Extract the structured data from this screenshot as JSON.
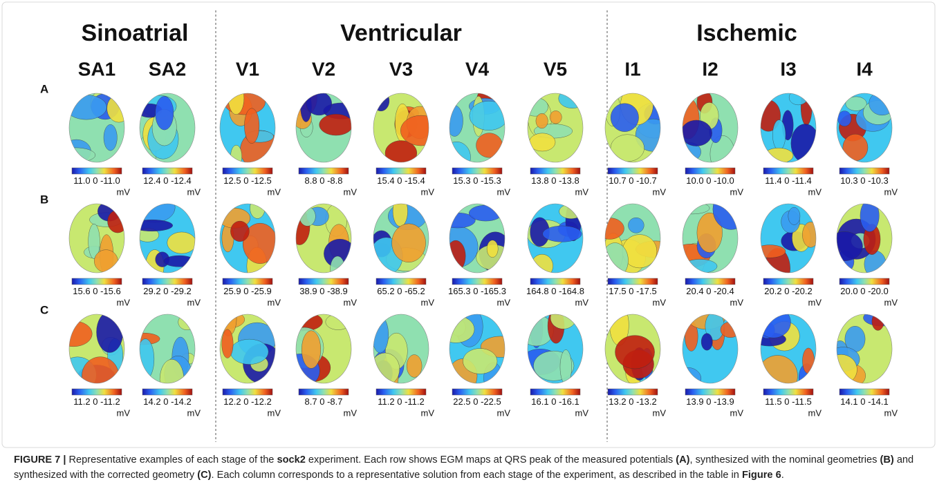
{
  "groups": [
    {
      "title": "Sinoatrial",
      "columns": [
        "SA1",
        "SA2"
      ]
    },
    {
      "title": "Ventricular",
      "columns": [
        "V1",
        "V2",
        "V3",
        "V4",
        "V5"
      ]
    },
    {
      "title": "Ischemic",
      "columns": [
        "I1",
        "I2",
        "I3",
        "I4"
      ]
    }
  ],
  "rows": [
    {
      "label": "A",
      "scales": [
        {
          "max": "11.0",
          "zero": "0",
          "min": "-11.0",
          "unit": "mV"
        },
        {
          "max": "12.4",
          "zero": "0",
          "min": "-12.4",
          "unit": "mV"
        },
        {
          "max": "12.5",
          "zero": "0",
          "min": "-12.5",
          "unit": "mV"
        },
        {
          "max": "8.8",
          "zero": "0",
          "min": "-8.8",
          "unit": "mV"
        },
        {
          "max": "15.4",
          "zero": "0",
          "min": "-15.4",
          "unit": "mV"
        },
        {
          "max": "15.3",
          "zero": "0",
          "min": "-15.3",
          "unit": "mV"
        },
        {
          "max": "13.8",
          "zero": "0",
          "min": "-13.8",
          "unit": "mV"
        },
        {
          "max": "10.7",
          "zero": "0",
          "min": "-10.7",
          "unit": "mV"
        },
        {
          "max": "10.0",
          "zero": "0",
          "min": "-10.0",
          "unit": "mV"
        },
        {
          "max": "11.4",
          "zero": "0",
          "min": "-11.4",
          "unit": "mV"
        },
        {
          "max": "10.3",
          "zero": "0",
          "min": "-10.3",
          "unit": "mV"
        }
      ]
    },
    {
      "label": "B",
      "scales": [
        {
          "max": "15.6",
          "zero": "0",
          "min": "-15.6",
          "unit": "mV"
        },
        {
          "max": "29.2",
          "zero": "0",
          "min": "-29.2",
          "unit": "mV"
        },
        {
          "max": "25.9",
          "zero": "0",
          "min": "-25.9",
          "unit": "mV"
        },
        {
          "max": "38.9",
          "zero": "0",
          "min": "-38.9",
          "unit": "mV"
        },
        {
          "max": "65.2",
          "zero": "0",
          "min": "-65.2",
          "unit": "mV"
        },
        {
          "max": "165.3",
          "zero": "0",
          "min": "-165.3",
          "unit": "mV"
        },
        {
          "max": "164.8",
          "zero": "0",
          "min": "-164.8",
          "unit": "mV"
        },
        {
          "max": "17.5",
          "zero": "0",
          "min": "-17.5",
          "unit": "mV"
        },
        {
          "max": "20.4",
          "zero": "0",
          "min": "-20.4",
          "unit": "mV"
        },
        {
          "max": "20.2",
          "zero": "0",
          "min": "-20.2",
          "unit": "mV"
        },
        {
          "max": "20.0",
          "zero": "0",
          "min": "-20.0",
          "unit": "mV"
        }
      ]
    },
    {
      "label": "C",
      "scales": [
        {
          "max": "11.2",
          "zero": "0",
          "min": "-11.2",
          "unit": "mV"
        },
        {
          "max": "14.2",
          "zero": "0",
          "min": "-14.2",
          "unit": "mV"
        },
        {
          "max": "12.2",
          "zero": "0",
          "min": "-12.2",
          "unit": "mV"
        },
        {
          "max": "8.7",
          "zero": "0",
          "min": "-8.7",
          "unit": "mV"
        },
        {
          "max": "11.2",
          "zero": "0",
          "min": "-11.2",
          "unit": "mV"
        },
        {
          "max": "22.5",
          "zero": "0",
          "min": "-22.5",
          "unit": "mV"
        },
        {
          "max": "16.1",
          "zero": "0",
          "min": "-16.1",
          "unit": "mV"
        },
        {
          "max": "13.2",
          "zero": "0",
          "min": "-13.2",
          "unit": "mV"
        },
        {
          "max": "13.9",
          "zero": "0",
          "min": "-13.9",
          "unit": "mV"
        },
        {
          "max": "11.5",
          "zero": "0",
          "min": "-11.5",
          "unit": "mV"
        },
        {
          "max": "14.1",
          "zero": "0",
          "min": "-14.1",
          "unit": "mV"
        }
      ]
    }
  ],
  "caption": [
    {
      "text": "FIGURE 7 |",
      "bold": true
    },
    {
      "text": " Representative examples of each stage of the ",
      "bold": false
    },
    {
      "text": "sock2",
      "bold": true
    },
    {
      "text": " experiment. Each row shows EGM maps at QRS peak of the measured potentials ",
      "bold": false
    },
    {
      "text": "(A)",
      "bold": true
    },
    {
      "text": ", synthesized with the nominal geometries ",
      "bold": false
    },
    {
      "text": "(B)",
      "bold": true
    },
    {
      "text": " and synthesized with the corrected geometry ",
      "bold": false
    },
    {
      "text": "(C)",
      "bold": true
    },
    {
      "text": ". Each column corresponds to a representative solution from each stage of the experiment, as described in the table in ",
      "bold": false
    },
    {
      "text": "Figure 6",
      "bold": true
    },
    {
      "text": ".",
      "bold": false
    }
  ]
}
